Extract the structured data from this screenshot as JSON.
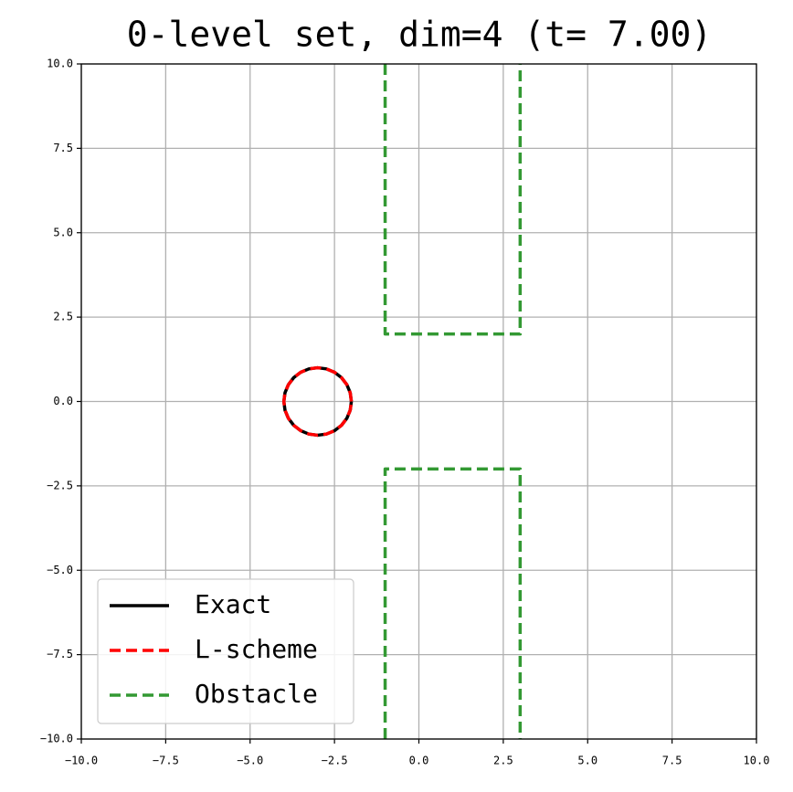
{
  "chart_data": {
    "type": "line",
    "title": "0-level set, dim=4 (t= 7.00)",
    "xlim": [
      -10,
      10
    ],
    "ylim": [
      -10,
      10
    ],
    "xticks": [
      {
        "value": -10,
        "label": "−10.0"
      },
      {
        "value": -7.5,
        "label": "−7.5"
      },
      {
        "value": -5,
        "label": "−5.0"
      },
      {
        "value": -2.5,
        "label": "−2.5"
      },
      {
        "value": 0,
        "label": "0.0"
      },
      {
        "value": 2.5,
        "label": "2.5"
      },
      {
        "value": 5,
        "label": "5.0"
      },
      {
        "value": 7.5,
        "label": "7.5"
      },
      {
        "value": 10,
        "label": "10.0"
      }
    ],
    "yticks": [
      {
        "value": -10,
        "label": "−10.0"
      },
      {
        "value": -7.5,
        "label": "−7.5"
      },
      {
        "value": -5,
        "label": "−5.0"
      },
      {
        "value": -2.5,
        "label": "−2.5"
      },
      {
        "value": 0,
        "label": "0.0"
      },
      {
        "value": 2.5,
        "label": "2.5"
      },
      {
        "value": 5,
        "label": "5.0"
      },
      {
        "value": 7.5,
        "label": "7.5"
      },
      {
        "value": 10,
        "label": "10.0"
      }
    ],
    "grid": true,
    "legend": "lower left",
    "series": [
      {
        "name": "Exact",
        "color": "#000000",
        "linestyle": "solid",
        "x": [
          -2,
          -2.034,
          -2.134,
          -2.293,
          -2.5,
          -2.741,
          -3,
          -3.259,
          -3.5,
          -3.707,
          -3.866,
          -3.966,
          -4,
          -3.966,
          -3.866,
          -3.707,
          -3.5,
          -3.259,
          -3,
          -2.741,
          -2.5,
          -2.293,
          -2.134,
          -2.034,
          -2
        ],
        "values": [
          0,
          0.259,
          0.5,
          0.707,
          0.866,
          0.966,
          1,
          0.966,
          0.866,
          0.707,
          0.5,
          0.259,
          0,
          -0.259,
          -0.5,
          -0.707,
          -0.866,
          -0.966,
          -1,
          -0.966,
          -0.866,
          -0.707,
          -0.5,
          -0.259,
          0
        ]
      },
      {
        "name": "L-scheme",
        "color": "#ff0000",
        "linestyle": "dashed",
        "x": [
          -2,
          -2.034,
          -2.134,
          -2.293,
          -2.5,
          -2.741,
          -3,
          -3.259,
          -3.5,
          -3.707,
          -3.866,
          -3.966,
          -4,
          -3.966,
          -3.866,
          -3.707,
          -3.5,
          -3.259,
          -3,
          -2.741,
          -2.5,
          -2.293,
          -2.134,
          -2.034,
          -2
        ],
        "values": [
          0,
          0.259,
          0.5,
          0.707,
          0.866,
          0.966,
          1,
          0.966,
          0.866,
          0.707,
          0.5,
          0.259,
          0,
          -0.259,
          -0.5,
          -0.707,
          -0.866,
          -0.966,
          -1,
          -0.966,
          -0.866,
          -0.707,
          -0.5,
          -0.259,
          0
        ]
      },
      {
        "name": "Obstacle",
        "color": "#339933",
        "linestyle": "dashed",
        "x": [
          -1,
          -1,
          3,
          3,
          null,
          -1,
          -1,
          3,
          3
        ],
        "values": [
          10,
          2,
          2,
          10,
          null,
          -10,
          -2,
          -2,
          -10
        ]
      }
    ]
  }
}
